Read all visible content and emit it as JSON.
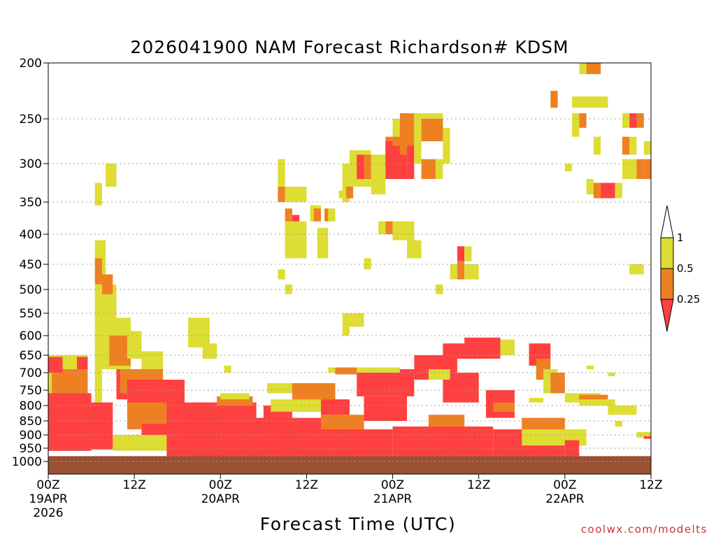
{
  "chart_data": {
    "type": "heatmap",
    "title": "2026041900 NAM Forecast Richardson# KDSM",
    "xlabel": "Forecast Time (UTC)",
    "ylabel": "",
    "credit": "coolwx.com/modelts",
    "y_axis": {
      "unit": "pressure",
      "range": [
        1000,
        200
      ],
      "ticks": [
        "200",
        "250",
        "300",
        "350",
        "400",
        "450",
        "500",
        "550",
        "600",
        "650",
        "700",
        "750",
        "800",
        "850",
        "900",
        "950",
        "1000"
      ],
      "tick_values": [
        200,
        250,
        300,
        350,
        400,
        450,
        500,
        550,
        600,
        650,
        700,
        750,
        800,
        850,
        900,
        950,
        1000
      ]
    },
    "x_axis": {
      "unit": "forecast hour",
      "range": [
        0,
        84
      ],
      "ticks": [
        {
          "hour": 0,
          "l1": "00Z",
          "l2": "19APR",
          "l3": "2026"
        },
        {
          "hour": 12,
          "l1": "12Z",
          "l2": "",
          "l3": ""
        },
        {
          "hour": 24,
          "l1": "00Z",
          "l2": "20APR",
          "l3": ""
        },
        {
          "hour": 36,
          "l1": "12Z",
          "l2": "",
          "l3": ""
        },
        {
          "hour": 48,
          "l1": "00Z",
          "l2": "21APR",
          "l3": ""
        },
        {
          "hour": 60,
          "l1": "12Z",
          "l2": "",
          "l3": ""
        },
        {
          "hour": 72,
          "l1": "00Z",
          "l2": "22APR",
          "l3": ""
        },
        {
          "hour": 84,
          "l1": "12Z",
          "l2": "",
          "l3": ""
        }
      ]
    },
    "legend": {
      "placement": "right",
      "labels": [
        "1",
        "0.5",
        "0.25"
      ],
      "bins": [
        {
          "range": "> 1",
          "color": "#ffffff"
        },
        {
          "range": "0.5 - 1",
          "color": "#dddd33"
        },
        {
          "range": "0.25 - 0.5",
          "color": "#ee8022"
        },
        {
          "range": "< 0.25",
          "color": "#ff4040"
        }
      ]
    },
    "colors": {
      "yellow": "#dddd33",
      "orange": "#ee8022",
      "red": "#ff4040",
      "ground": "#9a5032"
    },
    "ground_level_hpa": 980,
    "regions": [
      {
        "cat": "yellow",
        "h0": 0,
        "h1": 5.5,
        "p0": 650,
        "p1": 950
      },
      {
        "cat": "orange",
        "h0": 0.5,
        "h1": 5.5,
        "p0": 690,
        "p1": 940
      },
      {
        "cat": "red",
        "h0": 0,
        "h1": 2,
        "p0": 655,
        "p1": 700
      },
      {
        "cat": "red",
        "h0": 4,
        "h1": 5.5,
        "p0": 655,
        "p1": 690
      },
      {
        "cat": "red",
        "h0": 0,
        "h1": 6,
        "p0": 760,
        "p1": 960
      },
      {
        "cat": "yellow",
        "h0": 6.5,
        "h1": 7.5,
        "p0": 690,
        "p1": 930
      },
      {
        "cat": "red",
        "h0": 5.5,
        "h1": 9,
        "p0": 790,
        "p1": 955
      },
      {
        "cat": "yellow",
        "h0": 8,
        "h1": 9.5,
        "p0": 300,
        "p1": 330
      },
      {
        "cat": "yellow",
        "h0": 6.5,
        "h1": 7.5,
        "p0": 325,
        "p1": 355
      },
      {
        "cat": "yellow",
        "h0": 6.5,
        "h1": 8,
        "p0": 410,
        "p1": 470
      },
      {
        "cat": "orange",
        "h0": 6.5,
        "h1": 7.5,
        "p0": 440,
        "p1": 490
      },
      {
        "cat": "yellow",
        "h0": 6.5,
        "h1": 9.5,
        "p0": 490,
        "p1": 690
      },
      {
        "cat": "orange",
        "h0": 7.5,
        "h1": 9,
        "p0": 470,
        "p1": 510
      },
      {
        "cat": "yellow",
        "h0": 9.5,
        "h1": 11.5,
        "p0": 560,
        "p1": 690
      },
      {
        "cat": "orange",
        "h0": 8.5,
        "h1": 11.5,
        "p0": 600,
        "p1": 680
      },
      {
        "cat": "red",
        "h0": 9.5,
        "h1": 11,
        "p0": 690,
        "p1": 780
      },
      {
        "cat": "yellow",
        "h0": 11,
        "h1": 13,
        "p0": 590,
        "p1": 660
      },
      {
        "cat": "orange",
        "h0": 10,
        "h1": 16,
        "p0": 690,
        "p1": 760
      },
      {
        "cat": "yellow",
        "h0": 13,
        "h1": 16,
        "p0": 640,
        "p1": 690
      },
      {
        "cat": "red",
        "h0": 11,
        "h1": 19,
        "p0": 720,
        "p1": 800
      },
      {
        "cat": "orange",
        "h0": 11,
        "h1": 18,
        "p0": 790,
        "p1": 880
      },
      {
        "cat": "red",
        "h0": 13,
        "h1": 18,
        "p0": 860,
        "p1": 930
      },
      {
        "cat": "yellow",
        "h0": 9,
        "h1": 17,
        "p0": 900,
        "p1": 960
      },
      {
        "cat": "yellow",
        "h0": 19.5,
        "h1": 22.5,
        "p0": 560,
        "p1": 630
      },
      {
        "cat": "yellow",
        "h0": 21.5,
        "h1": 23.5,
        "p0": 620,
        "p1": 660
      },
      {
        "cat": "yellow",
        "h0": 24.5,
        "h1": 25.5,
        "p0": 680,
        "p1": 700
      },
      {
        "cat": "red",
        "h0": 16.5,
        "h1": 25,
        "p0": 790,
        "p1": 980
      },
      {
        "cat": "red",
        "h0": 20,
        "h1": 29,
        "p0": 790,
        "p1": 980
      },
      {
        "cat": "orange",
        "h0": 23.5,
        "h1": 28.5,
        "p0": 770,
        "p1": 800
      },
      {
        "cat": "yellow",
        "h0": 24,
        "h1": 28,
        "p0": 760,
        "p1": 780
      },
      {
        "cat": "red",
        "h0": 28,
        "h1": 40,
        "p0": 840,
        "p1": 980
      },
      {
        "cat": "red",
        "h0": 30,
        "h1": 34,
        "p0": 800,
        "p1": 850
      },
      {
        "cat": "yellow",
        "h0": 30.5,
        "h1": 38,
        "p0": 730,
        "p1": 760
      },
      {
        "cat": "orange",
        "h0": 34,
        "h1": 40,
        "p0": 730,
        "p1": 820
      },
      {
        "cat": "yellow",
        "h0": 31,
        "h1": 41,
        "p0": 780,
        "p1": 820
      },
      {
        "cat": "red",
        "h0": 38,
        "h1": 42,
        "p0": 780,
        "p1": 830
      },
      {
        "cat": "orange",
        "h0": 38,
        "h1": 44,
        "p0": 830,
        "p1": 880
      },
      {
        "cat": "red",
        "h0": 40,
        "h1": 48,
        "p0": 880,
        "p1": 980
      },
      {
        "cat": "red",
        "h0": 43,
        "h1": 51,
        "p0": 690,
        "p1": 770
      },
      {
        "cat": "red",
        "h0": 44,
        "h1": 50,
        "p0": 770,
        "p1": 850
      },
      {
        "cat": "yellow",
        "h0": 39,
        "h1": 45,
        "p0": 685,
        "p1": 700
      },
      {
        "cat": "orange",
        "h0": 40,
        "h1": 43,
        "p0": 685,
        "p1": 705
      },
      {
        "cat": "yellow",
        "h0": 45,
        "h1": 49,
        "p0": 685,
        "p1": 700
      },
      {
        "cat": "red",
        "h0": 51,
        "h1": 57,
        "p0": 650,
        "p1": 720
      },
      {
        "cat": "red",
        "h0": 55,
        "h1": 60,
        "p0": 700,
        "p1": 790
      },
      {
        "cat": "yellow",
        "h0": 53,
        "h1": 56,
        "p0": 690,
        "p1": 720
      },
      {
        "cat": "red",
        "h0": 55,
        "h1": 60,
        "p0": 620,
        "p1": 660
      },
      {
        "cat": "red",
        "h0": 58,
        "h1": 63,
        "p0": 605,
        "p1": 660
      },
      {
        "cat": "yellow",
        "h0": 63,
        "h1": 65,
        "p0": 610,
        "p1": 650
      },
      {
        "cat": "orange",
        "h0": 53,
        "h1": 58,
        "p0": 830,
        "p1": 880
      },
      {
        "cat": "red",
        "h0": 48,
        "h1": 62,
        "p0": 870,
        "p1": 980
      },
      {
        "cat": "red",
        "h0": 61,
        "h1": 65,
        "p0": 750,
        "p1": 840
      },
      {
        "cat": "orange",
        "h0": 62,
        "h1": 65,
        "p0": 790,
        "p1": 820
      },
      {
        "cat": "red",
        "h0": 62,
        "h1": 72,
        "p0": 880,
        "p1": 980
      },
      {
        "cat": "red",
        "h0": 67,
        "h1": 70,
        "p0": 620,
        "p1": 680
      },
      {
        "cat": "orange",
        "h0": 68,
        "h1": 70,
        "p0": 660,
        "p1": 720
      },
      {
        "cat": "yellow",
        "h0": 69,
        "h1": 71,
        "p0": 690,
        "p1": 760
      },
      {
        "cat": "orange",
        "h0": 70,
        "h1": 72,
        "p0": 700,
        "p1": 760
      },
      {
        "cat": "yellow",
        "h0": 67,
        "h1": 69,
        "p0": 775,
        "p1": 790
      },
      {
        "cat": "yellow",
        "h0": 72,
        "h1": 77,
        "p0": 760,
        "p1": 790
      },
      {
        "cat": "orange",
        "h0": 74,
        "h1": 78,
        "p0": 765,
        "p1": 790
      },
      {
        "cat": "yellow",
        "h0": 74,
        "h1": 79,
        "p0": 780,
        "p1": 800
      },
      {
        "cat": "yellow",
        "h0": 78,
        "h1": 82,
        "p0": 800,
        "p1": 830
      },
      {
        "cat": "orange",
        "h0": 66,
        "h1": 72,
        "p0": 840,
        "p1": 880
      },
      {
        "cat": "yellow",
        "h0": 66,
        "h1": 75,
        "p0": 880,
        "p1": 940
      },
      {
        "cat": "red",
        "h0": 72,
        "h1": 74,
        "p0": 920,
        "p1": 980
      },
      {
        "cat": "yellow",
        "h0": 79,
        "h1": 80,
        "p0": 850,
        "p1": 870
      },
      {
        "cat": "yellow",
        "h0": 82,
        "h1": 84,
        "p0": 890,
        "p1": 910
      },
      {
        "cat": "red",
        "h0": 83,
        "h1": 84,
        "p0": 905,
        "p1": 915
      },
      {
        "cat": "yellow",
        "h0": 32,
        "h1": 33,
        "p0": 295,
        "p1": 330
      },
      {
        "cat": "orange",
        "h0": 32,
        "h1": 33,
        "p0": 330,
        "p1": 350
      },
      {
        "cat": "yellow",
        "h0": 33,
        "h1": 36,
        "p0": 330,
        "p1": 350
      },
      {
        "cat": "orange",
        "h0": 33,
        "h1": 34,
        "p0": 360,
        "p1": 380
      },
      {
        "cat": "red",
        "h0": 34,
        "h1": 35,
        "p0": 370,
        "p1": 400
      },
      {
        "cat": "yellow",
        "h0": 33,
        "h1": 36,
        "p0": 380,
        "p1": 440
      },
      {
        "cat": "yellow",
        "h0": 36.5,
        "h1": 38,
        "p0": 355,
        "p1": 380
      },
      {
        "cat": "orange",
        "h0": 37,
        "h1": 38,
        "p0": 360,
        "p1": 380
      },
      {
        "cat": "yellow",
        "h0": 37.5,
        "h1": 39,
        "p0": 390,
        "p1": 440
      },
      {
        "cat": "orange",
        "h0": 38.5,
        "h1": 39.5,
        "p0": 360,
        "p1": 380
      },
      {
        "cat": "yellow",
        "h0": 39,
        "h1": 40,
        "p0": 360,
        "p1": 380
      },
      {
        "cat": "yellow",
        "h0": 32,
        "h1": 33,
        "p0": 460,
        "p1": 480
      },
      {
        "cat": "yellow",
        "h0": 33,
        "h1": 34,
        "p0": 490,
        "p1": 510
      },
      {
        "cat": "yellow",
        "h0": 42,
        "h1": 45,
        "p0": 285,
        "p1": 330
      },
      {
        "cat": "red",
        "h0": 43,
        "h1": 44,
        "p0": 290,
        "p1": 320
      },
      {
        "cat": "orange",
        "h0": 44,
        "h1": 45,
        "p0": 290,
        "p1": 320
      },
      {
        "cat": "yellow",
        "h0": 45,
        "h1": 47,
        "p0": 290,
        "p1": 340
      },
      {
        "cat": "orange",
        "h0": 47,
        "h1": 48,
        "p0": 270,
        "p1": 300
      },
      {
        "cat": "red",
        "h0": 47,
        "h1": 50,
        "p0": 275,
        "p1": 320
      },
      {
        "cat": "orange",
        "h0": 48,
        "h1": 50,
        "p0": 260,
        "p1": 280
      },
      {
        "cat": "yellow",
        "h0": 48,
        "h1": 49,
        "p0": 250,
        "p1": 270
      },
      {
        "cat": "orange",
        "h0": 49,
        "h1": 51,
        "p0": 245,
        "p1": 290
      },
      {
        "cat": "red",
        "h0": 50,
        "h1": 51,
        "p0": 280,
        "p1": 320
      },
      {
        "cat": "yellow",
        "h0": 51,
        "h1": 52,
        "p0": 245,
        "p1": 300
      },
      {
        "cat": "yellow",
        "h0": 52,
        "h1": 55,
        "p0": 245,
        "p1": 270
      },
      {
        "cat": "orange",
        "h0": 52,
        "h1": 55,
        "p0": 250,
        "p1": 275
      },
      {
        "cat": "orange",
        "h0": 52,
        "h1": 54,
        "p0": 295,
        "p1": 320
      },
      {
        "cat": "yellow",
        "h0": 54,
        "h1": 55,
        "p0": 295,
        "p1": 320
      },
      {
        "cat": "yellow",
        "h0": 55,
        "h1": 56,
        "p0": 260,
        "p1": 300
      },
      {
        "cat": "yellow",
        "h0": 41,
        "h1": 42,
        "p0": 300,
        "p1": 350
      },
      {
        "cat": "orange",
        "h0": 41.5,
        "h1": 42.5,
        "p0": 330,
        "p1": 345
      },
      {
        "cat": "yellow",
        "h0": 40.5,
        "h1": 41.5,
        "p0": 335,
        "p1": 345
      },
      {
        "cat": "yellow",
        "h0": 46,
        "h1": 47,
        "p0": 380,
        "p1": 400
      },
      {
        "cat": "orange",
        "h0": 47,
        "h1": 48,
        "p0": 380,
        "p1": 400
      },
      {
        "cat": "yellow",
        "h0": 48,
        "h1": 51,
        "p0": 380,
        "p1": 410
      },
      {
        "cat": "yellow",
        "h0": 50,
        "h1": 52,
        "p0": 410,
        "p1": 440
      },
      {
        "cat": "yellow",
        "h0": 44,
        "h1": 45,
        "p0": 440,
        "p1": 460
      },
      {
        "cat": "yellow",
        "h0": 41,
        "h1": 44,
        "p0": 550,
        "p1": 580
      },
      {
        "cat": "yellow",
        "h0": 41,
        "h1": 42,
        "p0": 580,
        "p1": 600
      },
      {
        "cat": "red",
        "h0": 57,
        "h1": 58,
        "p0": 420,
        "p1": 445
      },
      {
        "cat": "yellow",
        "h0": 58,
        "h1": 59,
        "p0": 420,
        "p1": 445
      },
      {
        "cat": "orange",
        "h0": 57,
        "h1": 58,
        "p0": 445,
        "p1": 480
      },
      {
        "cat": "yellow",
        "h0": 56,
        "h1": 57,
        "p0": 450,
        "p1": 480
      },
      {
        "cat": "yellow",
        "h0": 58,
        "h1": 60,
        "p0": 450,
        "p1": 480
      },
      {
        "cat": "yellow",
        "h0": 54,
        "h1": 55,
        "p0": 490,
        "p1": 510
      },
      {
        "cat": "yellow",
        "h0": 74,
        "h1": 77,
        "p0": 200,
        "p1": 210
      },
      {
        "cat": "orange",
        "h0": 75,
        "h1": 77,
        "p0": 200,
        "p1": 210
      },
      {
        "cat": "yellow",
        "h0": 70,
        "h1": 71,
        "p0": 230,
        "p1": 240
      },
      {
        "cat": "orange",
        "h0": 70,
        "h1": 71,
        "p0": 225,
        "p1": 240
      },
      {
        "cat": "yellow",
        "h0": 73,
        "h1": 78,
        "p0": 230,
        "p1": 240
      },
      {
        "cat": "yellow",
        "h0": 73,
        "h1": 74,
        "p0": 245,
        "p1": 270
      },
      {
        "cat": "orange",
        "h0": 74,
        "h1": 75,
        "p0": 245,
        "p1": 260
      },
      {
        "cat": "yellow",
        "h0": 76,
        "h1": 77,
        "p0": 270,
        "p1": 290
      },
      {
        "cat": "yellow",
        "h0": 72,
        "h1": 73,
        "p0": 300,
        "p1": 310
      },
      {
        "cat": "yellow",
        "h0": 75,
        "h1": 76,
        "p0": 320,
        "p1": 340
      },
      {
        "cat": "orange",
        "h0": 76,
        "h1": 77,
        "p0": 325,
        "p1": 345
      },
      {
        "cat": "red",
        "h0": 77,
        "h1": 79,
        "p0": 325,
        "p1": 345
      },
      {
        "cat": "yellow",
        "h0": 79,
        "h1": 80,
        "p0": 325,
        "p1": 345
      },
      {
        "cat": "yellow",
        "h0": 80,
        "h1": 81,
        "p0": 245,
        "p1": 260
      },
      {
        "cat": "red",
        "h0": 81,
        "h1": 82,
        "p0": 245,
        "p1": 260
      },
      {
        "cat": "orange",
        "h0": 82,
        "h1": 83,
        "p0": 245,
        "p1": 260
      },
      {
        "cat": "orange",
        "h0": 80,
        "h1": 81,
        "p0": 270,
        "p1": 290
      },
      {
        "cat": "yellow",
        "h0": 81,
        "h1": 82,
        "p0": 270,
        "p1": 290
      },
      {
        "cat": "yellow",
        "h0": 83,
        "h1": 84,
        "p0": 275,
        "p1": 290
      },
      {
        "cat": "yellow",
        "h0": 80,
        "h1": 82,
        "p0": 295,
        "p1": 320
      },
      {
        "cat": "orange",
        "h0": 82,
        "h1": 83,
        "p0": 295,
        "p1": 320
      },
      {
        "cat": "orange",
        "h0": 83,
        "h1": 84,
        "p0": 295,
        "p1": 320
      },
      {
        "cat": "yellow",
        "h0": 81,
        "h1": 83,
        "p0": 450,
        "p1": 470
      },
      {
        "cat": "yellow",
        "h0": 75,
        "h1": 76,
        "p0": 680,
        "p1": 690
      },
      {
        "cat": "yellow",
        "h0": 78,
        "h1": 79,
        "p0": 700,
        "p1": 710
      }
    ]
  }
}
